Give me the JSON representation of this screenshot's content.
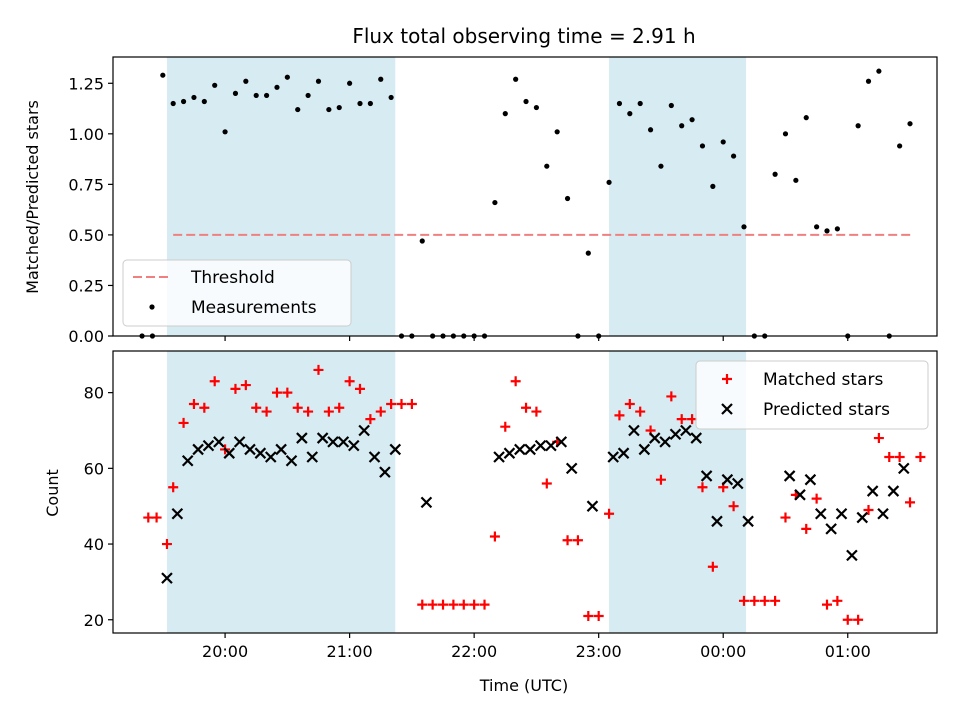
{
  "chart_data": [
    {
      "type": "scatter",
      "title": "Flux total observing time = 2.91 h",
      "xlabel": "",
      "ylabel": "Matched/Predicted stars",
      "ylim": [
        0,
        1.38
      ],
      "xlim": [
        "19:15",
        "21:45+3:45"
      ],
      "y_ticks": [
        0.0,
        0.25,
        0.5,
        0.75,
        1.0,
        1.25
      ],
      "y_tick_labels": [
        "0.00",
        "0.25",
        "0.50",
        "0.75",
        "1.00",
        "1.25"
      ],
      "shaded_intervals": [
        [
          "19:32",
          "21:22"
        ],
        [
          "23:05",
          "00:11"
        ]
      ],
      "threshold": {
        "name": "Threshold",
        "y": 0.5,
        "x_range": [
          "19:35",
          "01:31"
        ],
        "color": "#f08080"
      },
      "series": [
        {
          "name": "Measurements",
          "color": "#000000",
          "points": [
            [
              "19:20",
              0.0
            ],
            [
              "19:25",
              0.0
            ],
            [
              "19:30",
              1.29
            ],
            [
              "19:35",
              1.15
            ],
            [
              "19:40",
              1.16
            ],
            [
              "19:45",
              1.18
            ],
            [
              "19:50",
              1.16
            ],
            [
              "19:55",
              1.24
            ],
            [
              "20:00",
              1.01
            ],
            [
              "20:05",
              1.2
            ],
            [
              "20:10",
              1.26
            ],
            [
              "20:15",
              1.19
            ],
            [
              "20:20",
              1.19
            ],
            [
              "20:25",
              1.23
            ],
            [
              "20:30",
              1.28
            ],
            [
              "20:35",
              1.12
            ],
            [
              "20:40",
              1.19
            ],
            [
              "20:45",
              1.26
            ],
            [
              "20:50",
              1.12
            ],
            [
              "20:55",
              1.13
            ],
            [
              "21:00",
              1.25
            ],
            [
              "21:05",
              1.15
            ],
            [
              "21:10",
              1.15
            ],
            [
              "21:15",
              1.27
            ],
            [
              "21:20",
              1.18
            ],
            [
              "21:25",
              0.0
            ],
            [
              "21:30",
              0.0
            ],
            [
              "21:35",
              0.47
            ],
            [
              "21:40",
              0.0
            ],
            [
              "21:45",
              0.0
            ],
            [
              "21:50",
              0.0
            ],
            [
              "21:55",
              0.0
            ],
            [
              "22:00",
              0.0
            ],
            [
              "22:05",
              0.0
            ],
            [
              "22:10",
              0.66
            ],
            [
              "22:15",
              1.1
            ],
            [
              "22:20",
              1.27
            ],
            [
              "22:25",
              1.16
            ],
            [
              "22:30",
              1.13
            ],
            [
              "22:35",
              0.84
            ],
            [
              "22:40",
              1.01
            ],
            [
              "22:45",
              0.68
            ],
            [
              "22:50",
              0.0
            ],
            [
              "22:55",
              0.41
            ],
            [
              "23:00",
              0.0
            ],
            [
              "23:05",
              0.76
            ],
            [
              "23:10",
              1.15
            ],
            [
              "23:15",
              1.1
            ],
            [
              "23:20",
              1.15
            ],
            [
              "23:25",
              1.02
            ],
            [
              "23:30",
              0.84
            ],
            [
              "23:35",
              1.14
            ],
            [
              "23:40",
              1.04
            ],
            [
              "23:45",
              1.07
            ],
            [
              "23:50",
              0.94
            ],
            [
              "23:55",
              0.74
            ],
            [
              "00:00",
              0.96
            ],
            [
              "00:05",
              0.89
            ],
            [
              "00:10",
              0.54
            ],
            [
              "00:15",
              0.0
            ],
            [
              "00:20",
              0.0
            ],
            [
              "00:25",
              0.8
            ],
            [
              "00:30",
              1.0
            ],
            [
              "00:35",
              0.77
            ],
            [
              "00:40",
              1.08
            ],
            [
              "00:45",
              0.54
            ],
            [
              "00:50",
              0.52
            ],
            [
              "00:55",
              0.53
            ],
            [
              "01:00",
              0.0
            ],
            [
              "01:05",
              1.04
            ],
            [
              "01:10",
              1.26
            ],
            [
              "01:15",
              1.31
            ],
            [
              "01:20",
              0.0
            ],
            [
              "01:25",
              0.94
            ],
            [
              "01:30",
              1.05
            ]
          ]
        }
      ],
      "legend": {
        "placement": "lower-left",
        "entries": [
          "Threshold",
          "Measurements"
        ]
      }
    },
    {
      "type": "scatter",
      "title": "",
      "xlabel": "Time (UTC)",
      "ylabel": "Count",
      "ylim": [
        16.5,
        91
      ],
      "y_ticks": [
        20,
        40,
        60,
        80
      ],
      "x_ticks": [
        "20:00",
        "21:00",
        "22:00",
        "23:00",
        "00:00",
        "01:00"
      ],
      "shaded_intervals": [
        [
          "19:32",
          "21:22"
        ],
        [
          "23:05",
          "00:11"
        ]
      ],
      "series": [
        {
          "name": "Matched stars",
          "color": "#ff0000",
          "marker": "plus",
          "points": [
            [
              "19:23",
              47
            ],
            [
              "19:27",
              47
            ],
            [
              "19:32",
              40
            ],
            [
              "19:35",
              55
            ],
            [
              "19:40",
              72
            ],
            [
              "19:45",
              77
            ],
            [
              "19:50",
              76
            ],
            [
              "19:55",
              83
            ],
            [
              "20:00",
              65
            ],
            [
              "20:05",
              81
            ],
            [
              "20:10",
              82
            ],
            [
              "20:15",
              76
            ],
            [
              "20:20",
              75
            ],
            [
              "20:25",
              80
            ],
            [
              "20:30",
              80
            ],
            [
              "20:35",
              76
            ],
            [
              "20:40",
              75
            ],
            [
              "20:45",
              86
            ],
            [
              "20:50",
              75
            ],
            [
              "20:55",
              76
            ],
            [
              "21:00",
              83
            ],
            [
              "21:05",
              81
            ],
            [
              "21:10",
              73
            ],
            [
              "21:15",
              75
            ],
            [
              "21:20",
              77
            ],
            [
              "21:25",
              77
            ],
            [
              "21:30",
              77
            ],
            [
              "21:35",
              24
            ],
            [
              "21:40",
              24
            ],
            [
              "21:45",
              24
            ],
            [
              "21:50",
              24
            ],
            [
              "21:55",
              24
            ],
            [
              "22:00",
              24
            ],
            [
              "22:05",
              24
            ],
            [
              "22:10",
              42
            ],
            [
              "22:15",
              71
            ],
            [
              "22:20",
              83
            ],
            [
              "22:25",
              76
            ],
            [
              "22:30",
              75
            ],
            [
              "22:35",
              56
            ],
            [
              "22:40",
              67
            ],
            [
              "22:45",
              41
            ],
            [
              "22:50",
              41
            ],
            [
              "22:55",
              21
            ],
            [
              "23:00",
              21
            ],
            [
              "23:05",
              48
            ],
            [
              "23:10",
              74
            ],
            [
              "23:15",
              77
            ],
            [
              "23:20",
              75
            ],
            [
              "23:25",
              70
            ],
            [
              "23:30",
              57
            ],
            [
              "23:35",
              79
            ],
            [
              "23:40",
              73
            ],
            [
              "23:45",
              73
            ],
            [
              "23:50",
              55
            ],
            [
              "23:55",
              34
            ],
            [
              "00:00",
              55
            ],
            [
              "00:05",
              50
            ],
            [
              "00:10",
              25
            ],
            [
              "00:15",
              25
            ],
            [
              "00:20",
              25
            ],
            [
              "00:25",
              25
            ],
            [
              "00:30",
              47
            ],
            [
              "00:35",
              53
            ],
            [
              "00:40",
              44
            ],
            [
              "00:45",
              52
            ],
            [
              "00:50",
              24
            ],
            [
              "00:55",
              25
            ],
            [
              "01:00",
              20
            ],
            [
              "01:05",
              20
            ],
            [
              "01:10",
              49
            ],
            [
              "01:15",
              68
            ],
            [
              "01:20",
              63
            ],
            [
              "01:25",
              63
            ],
            [
              "01:30",
              51
            ],
            [
              "01:35",
              63
            ]
          ]
        },
        {
          "name": "Predicted stars",
          "color": "#000000",
          "marker": "x",
          "points": [
            [
              "19:32",
              31
            ],
            [
              "19:37",
              48
            ],
            [
              "19:42",
              62
            ],
            [
              "19:47",
              65
            ],
            [
              "19:52",
              66
            ],
            [
              "19:57",
              67
            ],
            [
              "20:02",
              64
            ],
            [
              "20:07",
              67
            ],
            [
              "20:12",
              65
            ],
            [
              "20:17",
              64
            ],
            [
              "20:22",
              63
            ],
            [
              "20:27",
              65
            ],
            [
              "20:32",
              62
            ],
            [
              "20:37",
              68
            ],
            [
              "20:42",
              63
            ],
            [
              "20:47",
              68
            ],
            [
              "20:52",
              67
            ],
            [
              "20:57",
              67
            ],
            [
              "21:02",
              66
            ],
            [
              "21:07",
              70
            ],
            [
              "21:12",
              63
            ],
            [
              "21:17",
              59
            ],
            [
              "21:22",
              65
            ],
            [
              "21:37",
              51
            ],
            [
              "22:12",
              63
            ],
            [
              "22:17",
              64
            ],
            [
              "22:22",
              65
            ],
            [
              "22:27",
              65
            ],
            [
              "22:32",
              66
            ],
            [
              "22:37",
              66
            ],
            [
              "22:42",
              67
            ],
            [
              "22:47",
              60
            ],
            [
              "22:57",
              50
            ],
            [
              "23:07",
              63
            ],
            [
              "23:12",
              64
            ],
            [
              "23:17",
              70
            ],
            [
              "23:22",
              65
            ],
            [
              "23:27",
              68
            ],
            [
              "23:32",
              67
            ],
            [
              "23:37",
              69
            ],
            [
              "23:42",
              70
            ],
            [
              "23:47",
              68
            ],
            [
              "23:52",
              58
            ],
            [
              "23:57",
              46
            ],
            [
              "00:02",
              57
            ],
            [
              "00:07",
              56
            ],
            [
              "00:12",
              46
            ],
            [
              "00:32",
              58
            ],
            [
              "00:37",
              53
            ],
            [
              "00:42",
              57
            ],
            [
              "00:47",
              48
            ],
            [
              "00:52",
              44
            ],
            [
              "00:57",
              48
            ],
            [
              "01:02",
              37
            ],
            [
              "01:07",
              47
            ],
            [
              "01:12",
              54
            ],
            [
              "01:17",
              48
            ],
            [
              "01:22",
              54
            ],
            [
              "01:27",
              60
            ]
          ]
        }
      ],
      "legend": {
        "placement": "upper-right",
        "entries": [
          "Matched stars",
          "Predicted stars"
        ]
      }
    }
  ]
}
